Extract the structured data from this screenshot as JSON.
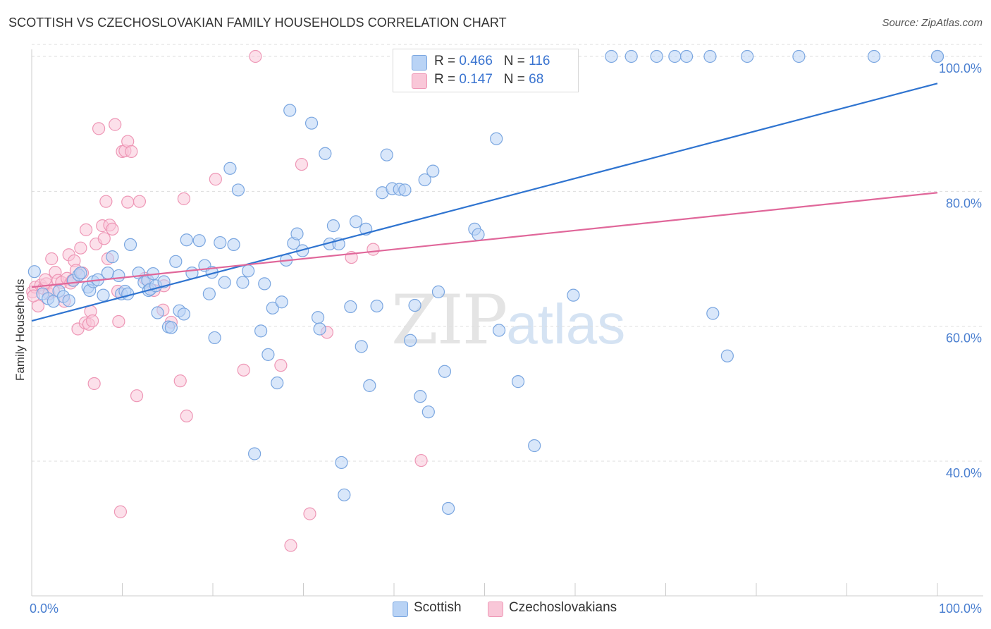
{
  "title": "SCOTTISH VS CZECHOSLOVAKIAN FAMILY HOUSEHOLDS CORRELATION CHART",
  "source": "Source: ZipAtlas.com",
  "watermark": {
    "zip": "ZIP",
    "atlas": "atlas"
  },
  "legend": {
    "scottish": {
      "r_label": "R =",
      "r_value": "0.466",
      "n_label": "N =",
      "n_value": "116"
    },
    "czech": {
      "r_label": "R =",
      "r_value": "0.147",
      "n_label": "N =",
      "n_value": "68"
    }
  },
  "bottom_legend": {
    "scottish": "Scottish",
    "czech": "Czechoslovakians"
  },
  "colors": {
    "scottish_fill": "#b9d3f5",
    "scottish_stroke": "#7aa6e0",
    "scottish_line": "#2f74d0",
    "czech_fill": "#f9c7d8",
    "czech_stroke": "#ee97b6",
    "czech_line": "#e0679a",
    "grid": "#dddddd",
    "tick": "#4a7fd0"
  },
  "chart_data": {
    "type": "scatter",
    "title": "SCOTTISH VS CZECHOSLOVAKIAN FAMILY HOUSEHOLDS CORRELATION CHART",
    "xlabel": "",
    "ylabel": "Family Households",
    "xlim": [
      0,
      100
    ],
    "ylim": [
      20,
      101.5
    ],
    "x_ticks": [
      {
        "value": 0,
        "label": "0.0%"
      },
      {
        "value": 100,
        "label": "100.0%"
      }
    ],
    "y_ticks": [
      {
        "value": 40,
        "label": "40.0%"
      },
      {
        "value": 60,
        "label": "60.0%"
      },
      {
        "value": 80,
        "label": "80.0%"
      },
      {
        "value": 100,
        "label": "100.0%"
      }
    ],
    "grid": true,
    "legend_position": "top-center",
    "series": [
      {
        "name": "Scottish",
        "regression": {
          "x": [
            0,
            100
          ],
          "y": [
            60.8,
            96.0
          ]
        },
        "points": [
          [
            0.3,
            68.1
          ],
          [
            1.2,
            64.8
          ],
          [
            1.8,
            64.1
          ],
          [
            2.4,
            63.7
          ],
          [
            3.0,
            65.2
          ],
          [
            3.5,
            64.4
          ],
          [
            4.1,
            63.8
          ],
          [
            4.6,
            66.8
          ],
          [
            5.2,
            67.6
          ],
          [
            5.4,
            67.9
          ],
          [
            6.2,
            65.8
          ],
          [
            6.4,
            65.3
          ],
          [
            6.8,
            66.6
          ],
          [
            7.3,
            66.9
          ],
          [
            7.9,
            64.6
          ],
          [
            8.4,
            67.9
          ],
          [
            8.9,
            70.3
          ],
          [
            9.6,
            67.5
          ],
          [
            9.9,
            64.8
          ],
          [
            10.3,
            65.2
          ],
          [
            10.6,
            64.8
          ],
          [
            10.9,
            72.1
          ],
          [
            11.8,
            67.9
          ],
          [
            12.4,
            66.5
          ],
          [
            12.8,
            66.8
          ],
          [
            12.9,
            65.3
          ],
          [
            13.1,
            65.5
          ],
          [
            13.4,
            67.8
          ],
          [
            13.7,
            66.0
          ],
          [
            13.9,
            62.0
          ],
          [
            14.6,
            66.6
          ],
          [
            15.1,
            59.9
          ],
          [
            15.4,
            59.8
          ],
          [
            15.9,
            69.6
          ],
          [
            16.3,
            62.3
          ],
          [
            16.8,
            61.8
          ],
          [
            17.1,
            72.8
          ],
          [
            17.7,
            67.9
          ],
          [
            18.5,
            72.7
          ],
          [
            19.1,
            69.0
          ],
          [
            19.6,
            64.8
          ],
          [
            19.9,
            68.0
          ],
          [
            20.2,
            58.3
          ],
          [
            20.8,
            72.4
          ],
          [
            21.3,
            66.5
          ],
          [
            21.9,
            83.4
          ],
          [
            22.3,
            72.1
          ],
          [
            22.8,
            80.2
          ],
          [
            23.3,
            66.5
          ],
          [
            23.9,
            68.2
          ],
          [
            24.6,
            41.1
          ],
          [
            25.3,
            59.3
          ],
          [
            25.7,
            66.3
          ],
          [
            26.1,
            55.8
          ],
          [
            26.6,
            62.7
          ],
          [
            27.1,
            51.6
          ],
          [
            27.6,
            63.6
          ],
          [
            28.1,
            69.8
          ],
          [
            28.5,
            92.0
          ],
          [
            28.9,
            72.3
          ],
          [
            29.3,
            73.7
          ],
          [
            29.9,
            71.2
          ],
          [
            30.9,
            90.1
          ],
          [
            31.6,
            61.3
          ],
          [
            31.8,
            59.6
          ],
          [
            32.4,
            85.6
          ],
          [
            32.9,
            72.2
          ],
          [
            33.3,
            74.9
          ],
          [
            33.9,
            72.2
          ],
          [
            34.2,
            39.8
          ],
          [
            34.5,
            35.0
          ],
          [
            35.2,
            62.9
          ],
          [
            35.8,
            75.5
          ],
          [
            36.4,
            57.0
          ],
          [
            36.9,
            74.4
          ],
          [
            37.3,
            51.2
          ],
          [
            38.1,
            63.0
          ],
          [
            38.7,
            79.8
          ],
          [
            39.2,
            85.4
          ],
          [
            39.8,
            80.4
          ],
          [
            40.6,
            80.3
          ],
          [
            41.2,
            80.2
          ],
          [
            41.8,
            57.9
          ],
          [
            42.3,
            63.1
          ],
          [
            42.9,
            49.6
          ],
          [
            43.4,
            81.7
          ],
          [
            43.8,
            47.3
          ],
          [
            44.3,
            83.0
          ],
          [
            44.9,
            65.1
          ],
          [
            45.6,
            53.3
          ],
          [
            46.0,
            33.0
          ],
          [
            47.1,
            95.9
          ],
          [
            48.4,
            100.0
          ],
          [
            48.9,
            74.4
          ],
          [
            49.3,
            73.6
          ],
          [
            51.6,
            59.4
          ],
          [
            51.3,
            87.8
          ],
          [
            53.7,
            51.8
          ],
          [
            55.5,
            42.3
          ],
          [
            57.0,
            100.0
          ],
          [
            58.5,
            100.0
          ],
          [
            59.3,
            100.0
          ],
          [
            59.8,
            64.6
          ],
          [
            64.0,
            100.0
          ],
          [
            66.2,
            100.0
          ],
          [
            69.0,
            100.0
          ],
          [
            71.0,
            100.0
          ],
          [
            72.3,
            100.0
          ],
          [
            74.9,
            100.0
          ],
          [
            75.2,
            61.9
          ],
          [
            76.8,
            55.6
          ],
          [
            79.0,
            100.0
          ],
          [
            84.7,
            100.0
          ],
          [
            93.0,
            100.0
          ],
          [
            100.0,
            100.0
          ],
          [
            100.0,
            100.0
          ]
        ]
      },
      {
        "name": "Czechoslovakians",
        "regression": {
          "x": [
            0,
            100
          ],
          "y": [
            65.8,
            79.8
          ]
        },
        "points": [
          [
            0.1,
            65.1
          ],
          [
            0.4,
            65.8
          ],
          [
            0.7,
            63.0
          ],
          [
            1.0,
            66.1
          ],
          [
            1.3,
            65.6
          ],
          [
            1.6,
            66.3
          ],
          [
            1.9,
            64.8
          ],
          [
            2.2,
            70.0
          ],
          [
            2.4,
            65.2
          ],
          [
            2.6,
            68.0
          ],
          [
            2.9,
            66.8
          ],
          [
            3.3,
            66.5
          ],
          [
            3.6,
            63.7
          ],
          [
            3.9,
            67.1
          ],
          [
            4.1,
            70.6
          ],
          [
            4.3,
            66.4
          ],
          [
            4.5,
            66.8
          ],
          [
            4.7,
            69.7
          ],
          [
            4.9,
            68.3
          ],
          [
            5.1,
            59.6
          ],
          [
            5.4,
            71.6
          ],
          [
            5.6,
            67.9
          ],
          [
            5.9,
            60.5
          ],
          [
            6.0,
            74.3
          ],
          [
            6.3,
            60.3
          ],
          [
            6.5,
            62.2
          ],
          [
            6.7,
            60.8
          ],
          [
            6.9,
            51.5
          ],
          [
            7.1,
            72.2
          ],
          [
            7.4,
            89.3
          ],
          [
            7.8,
            74.9
          ],
          [
            8.0,
            73.0
          ],
          [
            8.2,
            78.5
          ],
          [
            8.4,
            70.0
          ],
          [
            8.6,
            75.0
          ],
          [
            8.9,
            74.4
          ],
          [
            9.2,
            89.9
          ],
          [
            9.5,
            65.2
          ],
          [
            9.6,
            60.7
          ],
          [
            9.8,
            32.5
          ],
          [
            10.0,
            85.9
          ],
          [
            10.3,
            86.0
          ],
          [
            10.6,
            87.4
          ],
          [
            10.6,
            78.4
          ],
          [
            11.0,
            85.9
          ],
          [
            11.6,
            49.7
          ],
          [
            11.9,
            78.5
          ],
          [
            12.5,
            67.1
          ],
          [
            13.5,
            65.3
          ],
          [
            14.5,
            62.4
          ],
          [
            14.6,
            66.0
          ],
          [
            15.4,
            60.6
          ],
          [
            16.4,
            51.9
          ],
          [
            16.8,
            78.9
          ],
          [
            17.1,
            46.7
          ],
          [
            20.3,
            81.8
          ],
          [
            23.4,
            53.5
          ],
          [
            24.7,
            100.0
          ],
          [
            27.5,
            54.2
          ],
          [
            28.6,
            27.5
          ],
          [
            29.8,
            84.0
          ],
          [
            30.7,
            32.2
          ],
          [
            32.6,
            59.1
          ],
          [
            35.3,
            70.2
          ],
          [
            37.7,
            71.4
          ],
          [
            43.0,
            40.1
          ],
          [
            0.2,
            64.5
          ],
          [
            1.5,
            66.9
          ]
        ]
      }
    ]
  }
}
